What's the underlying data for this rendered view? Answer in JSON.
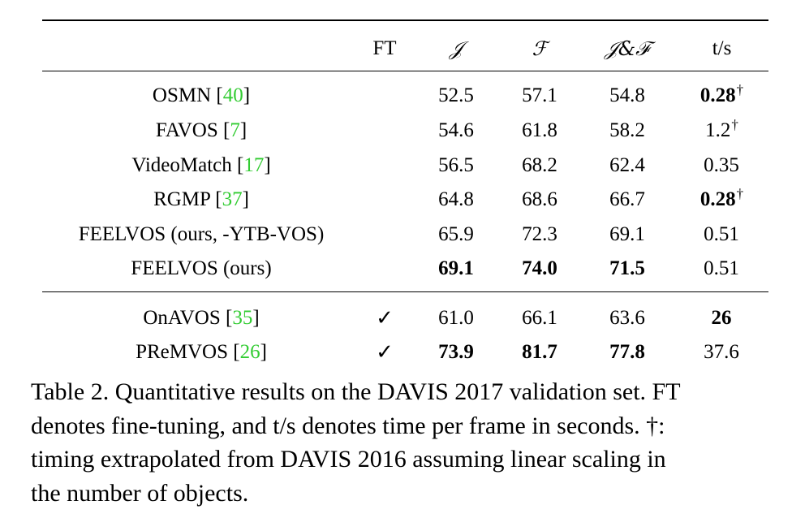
{
  "table": {
    "headers": {
      "method": "",
      "ft": "FT",
      "j": "𝒥",
      "f": "ℱ",
      "jf": "𝒥&ℱ",
      "ts": "t/s"
    },
    "rows": [
      {
        "name": "OSMN [",
        "ref": "40",
        "close": "]",
        "ft": "",
        "j": "52.5",
        "f": "57.1",
        "jf": "54.8",
        "ts": "0.28",
        "ts_dagger": "†"
      },
      {
        "name": "FAVOS [",
        "ref": "7",
        "close": "]",
        "ft": "",
        "j": "54.6",
        "f": "61.8",
        "jf": "58.2",
        "ts": "1.2",
        "ts_dagger": "†"
      },
      {
        "name": "VideoMatch [",
        "ref": "17",
        "close": "]",
        "ft": "",
        "j": "56.5",
        "f": "68.2",
        "jf": "62.4",
        "ts": "0.35",
        "ts_dagger": ""
      },
      {
        "name": "RGMP [",
        "ref": "37",
        "close": "]",
        "ft": "",
        "j": "64.8",
        "f": "68.6",
        "jf": "66.7",
        "ts": "0.28",
        "ts_dagger": "†"
      },
      {
        "name": "FEELVOS (ours, -YTB-VOS)",
        "ref": "",
        "close": "",
        "ft": "",
        "j": "65.9",
        "f": "72.3",
        "jf": "69.1",
        "ts": "0.51",
        "ts_dagger": ""
      },
      {
        "name": "FEELVOS (ours)",
        "ref": "",
        "close": "",
        "ft": "",
        "j": "69.1",
        "f": "74.0",
        "jf": "71.5",
        "ts": "0.51",
        "ts_dagger": ""
      },
      {
        "name": "OnAVOS [",
        "ref": "35",
        "close": "]",
        "ft": "✓",
        "j": "61.0",
        "f": "66.1",
        "jf": "63.6",
        "ts": "26",
        "ts_dagger": ""
      },
      {
        "name": "PReMVOS [",
        "ref": "26",
        "close": "]",
        "ft": "✓",
        "j": "73.9",
        "f": "81.7",
        "jf": "77.8",
        "ts": "37.6",
        "ts_dagger": ""
      }
    ]
  },
  "caption": {
    "line1": "Table 2. Quantitative results on the DAVIS 2017 validation set. FT",
    "line2": "denotes fine-tuning, and t/s denotes time per frame in seconds. †:",
    "line3": "timing extrapolated from DAVIS 2016 assuming linear scaling in",
    "line4": "the number of objects."
  }
}
